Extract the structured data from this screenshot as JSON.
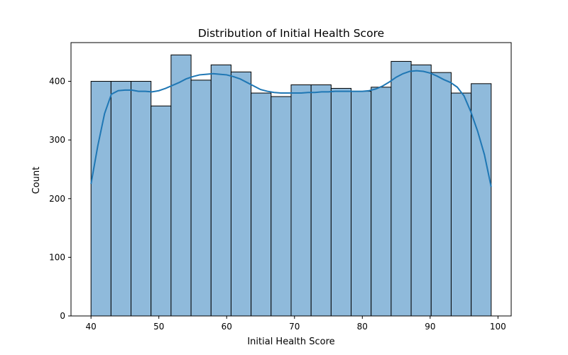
{
  "chart_data": {
    "type": "bar",
    "title": "Distribution of Initial Health Score",
    "xlabel": "Initial Health Score",
    "ylabel": "Count",
    "xlim": [
      37.05,
      101.95
    ],
    "ylim": [
      0,
      466
    ],
    "xticks": [
      40,
      50,
      60,
      70,
      80,
      90,
      100
    ],
    "yticks": [
      0,
      100,
      200,
      300,
      400
    ],
    "bins": {
      "edges": [
        40.0,
        42.95,
        45.9,
        48.85,
        51.8,
        54.75,
        57.7,
        60.65,
        63.6,
        66.55,
        69.5,
        72.45,
        75.4,
        78.35,
        81.3,
        84.25,
        87.2,
        90.15,
        93.1,
        96.05,
        99.0
      ],
      "counts": [
        400,
        400,
        400,
        358,
        445,
        402,
        428,
        416,
        380,
        374,
        394,
        394,
        388,
        383,
        390,
        434,
        428,
        415,
        380,
        396
      ]
    },
    "kde": {
      "x": [
        40,
        41,
        42,
        43,
        44,
        45,
        46,
        47,
        48,
        49,
        50,
        51,
        52,
        53,
        54,
        55,
        56,
        57,
        58,
        59,
        60,
        61,
        62,
        63,
        64,
        65,
        66,
        67,
        68,
        69,
        70,
        71,
        72,
        73,
        74,
        75,
        76,
        77,
        78,
        79,
        80,
        81,
        82,
        83,
        84,
        85,
        86,
        87,
        88,
        89,
        90,
        91,
        92,
        93,
        94,
        95,
        96,
        97,
        98,
        99
      ],
      "y": [
        225,
        290,
        345,
        378,
        384,
        385,
        385,
        383,
        383,
        382,
        384,
        388,
        393,
        398,
        404,
        408,
        411,
        412,
        413,
        412,
        411,
        408,
        404,
        398,
        392,
        386,
        383,
        381,
        380,
        380,
        380,
        380,
        381,
        381,
        382,
        382,
        383,
        383,
        383,
        383,
        383,
        384,
        387,
        392,
        399,
        407,
        413,
        417,
        418,
        417,
        414,
        409,
        403,
        398,
        390,
        375,
        348,
        315,
        275,
        220
      ]
    },
    "bar_fill": "#8fbadb",
    "bar_edge": "#000000",
    "kde_color": "#1f77b4",
    "grid": false,
    "legend": "none"
  }
}
